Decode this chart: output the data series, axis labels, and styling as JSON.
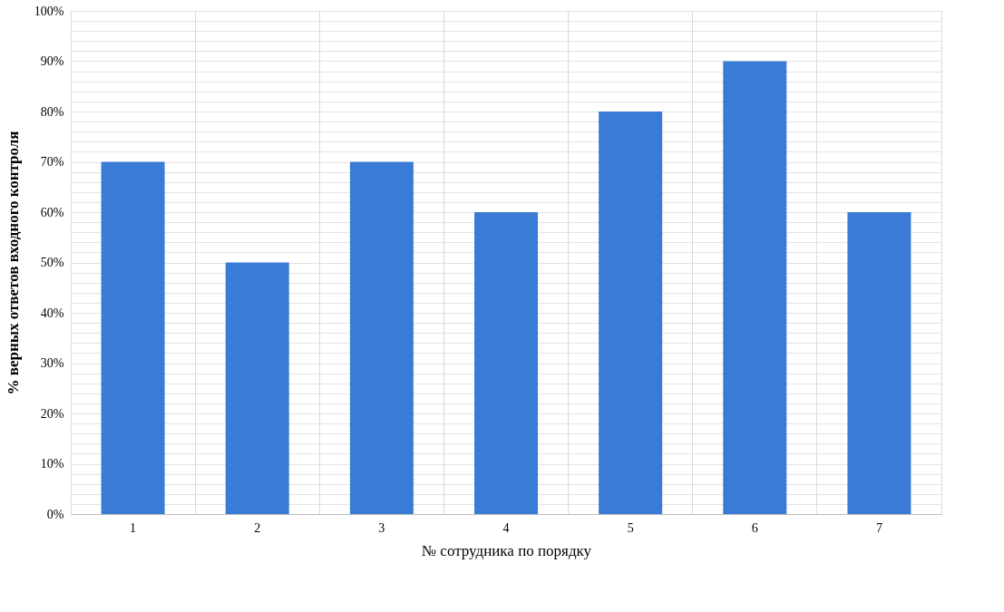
{
  "chart_data": {
    "type": "bar",
    "xlabel": "№ сотрудника по порядку",
    "ylabel": "% верных ответов входного контроля",
    "categories": [
      "1",
      "2",
      "3",
      "4",
      "5",
      "6",
      "7"
    ],
    "values": [
      70,
      50,
      70,
      60,
      80,
      90,
      60
    ],
    "color": "#3a7bd5",
    "ylim": [
      0,
      100
    ],
    "yticks": [
      {
        "value": 0,
        "label": "0%"
      },
      {
        "value": 2,
        "label": null
      },
      {
        "value": 4,
        "label": null
      },
      {
        "value": 6,
        "label": null
      },
      {
        "value": 8,
        "label": null
      },
      {
        "value": 10,
        "label": "10%"
      },
      {
        "value": 12,
        "label": null
      },
      {
        "value": 14,
        "label": null
      },
      {
        "value": 16,
        "label": null
      },
      {
        "value": 18,
        "label": null
      },
      {
        "value": 20,
        "label": "20%"
      },
      {
        "value": 22,
        "label": null
      },
      {
        "value": 24,
        "label": null
      },
      {
        "value": 26,
        "label": null
      },
      {
        "value": 28,
        "label": null
      },
      {
        "value": 30,
        "label": "30%"
      },
      {
        "value": 32,
        "label": null
      },
      {
        "value": 34,
        "label": null
      },
      {
        "value": 36,
        "label": null
      },
      {
        "value": 38,
        "label": null
      },
      {
        "value": 40,
        "label": "40%"
      },
      {
        "value": 42,
        "label": null
      },
      {
        "value": 44,
        "label": null
      },
      {
        "value": 46,
        "label": null
      },
      {
        "value": 48,
        "label": null
      },
      {
        "value": 50,
        "label": "50%"
      },
      {
        "value": 52,
        "label": null
      },
      {
        "value": 54,
        "label": null
      },
      {
        "value": 56,
        "label": null
      },
      {
        "value": 58,
        "label": null
      },
      {
        "value": 60,
        "label": "60%"
      },
      {
        "value": 62,
        "label": null
      },
      {
        "value": 64,
        "label": null
      },
      {
        "value": 66,
        "label": null
      },
      {
        "value": 68,
        "label": null
      },
      {
        "value": 70,
        "label": "70%"
      },
      {
        "value": 72,
        "label": null
      },
      {
        "value": 74,
        "label": null
      },
      {
        "value": 76,
        "label": null
      },
      {
        "value": 78,
        "label": null
      },
      {
        "value": 80,
        "label": "80%"
      },
      {
        "value": 82,
        "label": null
      },
      {
        "value": 84,
        "label": null
      },
      {
        "value": 86,
        "label": null
      },
      {
        "value": 88,
        "label": null
      },
      {
        "value": 90,
        "label": "90%"
      },
      {
        "value": 92,
        "label": null
      },
      {
        "value": 94,
        "label": null
      },
      {
        "value": 96,
        "label": null
      },
      {
        "value": 98,
        "label": null
      },
      {
        "value": 100,
        "label": "100%"
      }
    ],
    "grid": true
  }
}
